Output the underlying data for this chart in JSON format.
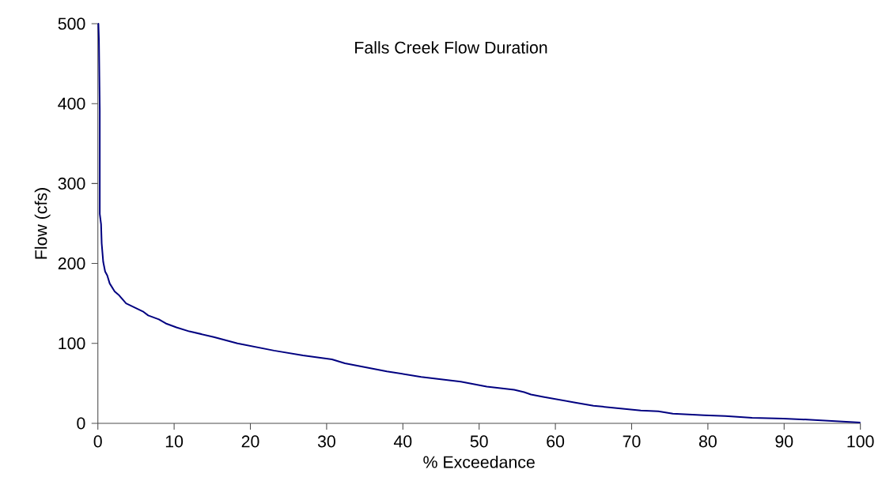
{
  "chart_data": {
    "type": "line",
    "title": "Falls Creek Flow Duration",
    "xlabel": "% Exceedance",
    "ylabel": "Flow (cfs)",
    "xlim": [
      0,
      100
    ],
    "ylim": [
      0,
      500
    ],
    "xticks": [
      0,
      10,
      20,
      30,
      40,
      50,
      60,
      70,
      80,
      90,
      100
    ],
    "yticks": [
      0,
      100,
      200,
      300,
      400,
      500
    ],
    "grid": false,
    "marker": "none",
    "line_style": "solid",
    "series": [
      {
        "color": "#000080",
        "x": [
          0,
          0.07,
          0.14,
          0.25,
          0.25,
          0.42,
          0.5,
          0.7,
          0.95,
          1.23,
          1.55,
          2.2,
          2.8,
          3.7,
          5.9,
          6.6,
          8.0,
          8.9,
          10.3,
          12.0,
          15.2,
          18.3,
          23.1,
          26.9,
          30.7,
          32.4,
          37.9,
          42.4,
          47.6,
          51.0,
          54.6,
          55.9,
          56.8,
          58.4,
          62.6,
          65.0,
          69.1,
          71.2,
          73.5,
          75.4,
          79.5,
          82.3,
          85.8,
          89.9,
          94.4,
          100
        ],
        "values": [
          500,
          500,
          479,
          392,
          262,
          249,
          225,
          202,
          190,
          185,
          175,
          165,
          160,
          150,
          140,
          135,
          130,
          125,
          120,
          115,
          108,
          100,
          91,
          85,
          80,
          75,
          65,
          58,
          52,
          46,
          42,
          39,
          36,
          33,
          26,
          22,
          18,
          16,
          15,
          12,
          10,
          9,
          7,
          6,
          4,
          1
        ]
      }
    ]
  }
}
